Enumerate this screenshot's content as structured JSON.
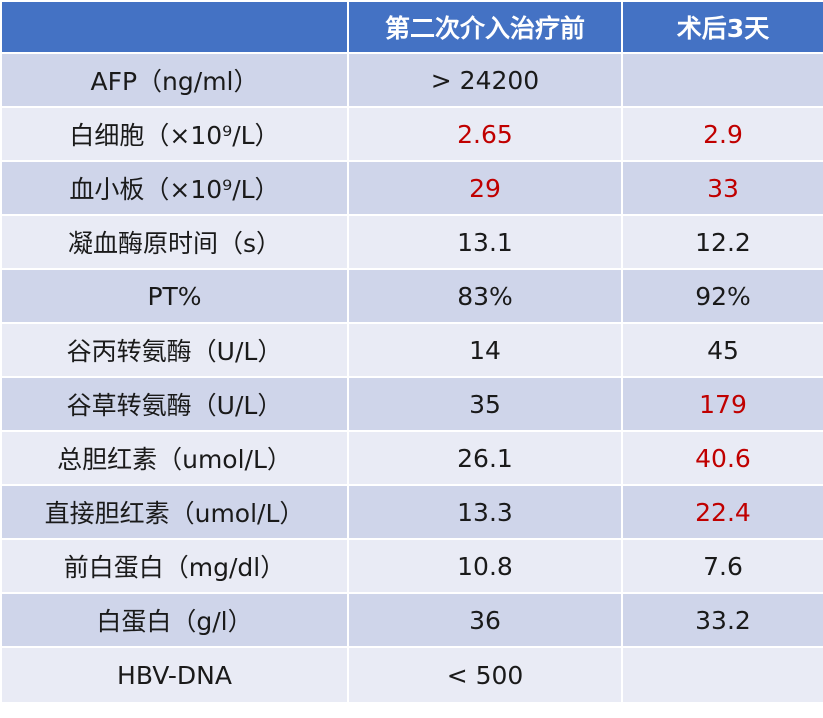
{
  "table": {
    "header": [
      "",
      "第二次介入治疗前",
      "术后3天"
    ],
    "rows": [
      {
        "label": "AFP（ng/ml）",
        "before": "> 24200",
        "after": "",
        "before_abnormal": false,
        "after_abnormal": false
      },
      {
        "label": "白细胞（×10⁹/L）",
        "before": "2.65",
        "after": "2.9",
        "before_abnormal": true,
        "after_abnormal": true
      },
      {
        "label": "血小板（×10⁹/L）",
        "before": "29",
        "after": "33",
        "before_abnormal": true,
        "after_abnormal": true
      },
      {
        "label": "凝血酶原时间（s）",
        "before": "13.1",
        "after": "12.2",
        "before_abnormal": false,
        "after_abnormal": false
      },
      {
        "label": "PT%",
        "before": "83%",
        "after": "92%",
        "before_abnormal": false,
        "after_abnormal": false
      },
      {
        "label": "谷丙转氨酶（U/L）",
        "before": "14",
        "after": "45",
        "before_abnormal": false,
        "after_abnormal": false
      },
      {
        "label": "谷草转氨酶（U/L）",
        "before": "35",
        "after": "179",
        "before_abnormal": false,
        "after_abnormal": true
      },
      {
        "label": "总胆红素（umol/L）",
        "before": "26.1",
        "after": "40.6",
        "before_abnormal": false,
        "after_abnormal": true
      },
      {
        "label": "直接胆红素（umol/L）",
        "before": "13.3",
        "after": "22.4",
        "before_abnormal": false,
        "after_abnormal": true
      },
      {
        "label": "前白蛋白（mg/dl）",
        "before": "10.8",
        "after": "7.6",
        "before_abnormal": false,
        "after_abnormal": false
      },
      {
        "label": "白蛋白（g/l）",
        "before": "36",
        "after": "33.2",
        "before_abnormal": false,
        "after_abnormal": false
      },
      {
        "label": "HBV-DNA",
        "before": "< 500",
        "after": "",
        "before_abnormal": false,
        "after_abnormal": false
      }
    ]
  },
  "colors": {
    "header_bg": "#4472c4",
    "header_text": "#ffffff",
    "row_band_dark": "#cfd5ea",
    "row_band_light": "#e9ebf5",
    "abnormal_text": "#c00000",
    "normal_text": "#1a1a1a"
  }
}
